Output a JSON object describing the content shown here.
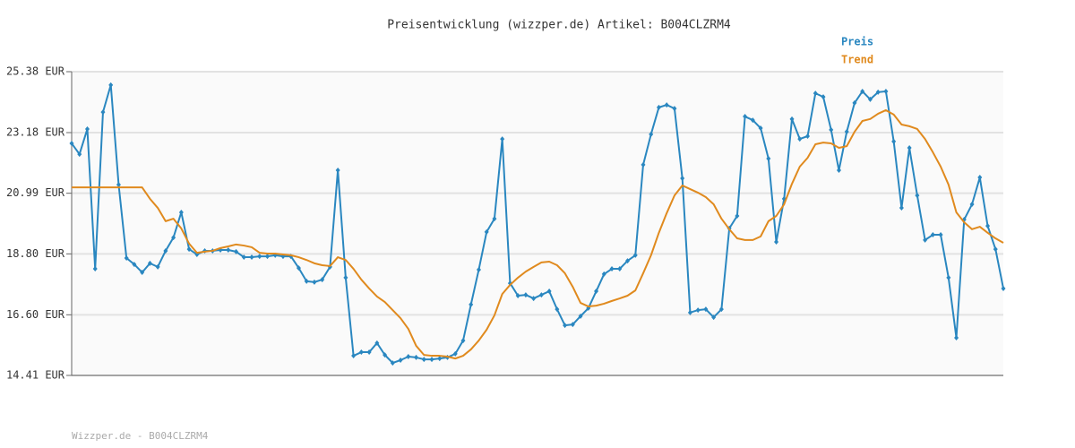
{
  "chart_data": {
    "type": "line",
    "title": "Preisentwicklung (wizzper.de) Artikel: B004CLZRM4",
    "source": "Wizzper.de - B004CLZRM4",
    "ylim": [
      14.41,
      25.38
    ],
    "yticks": [
      {
        "value": 14.41,
        "label": "14.41 EUR"
      },
      {
        "value": 16.6,
        "label": "16.60 EUR"
      },
      {
        "value": 18.8,
        "label": "18.80 EUR"
      },
      {
        "value": 20.99,
        "label": "20.99 EUR"
      },
      {
        "value": 23.18,
        "label": "23.18 EUR"
      },
      {
        "value": 25.38,
        "label": "25.38 EUR"
      }
    ],
    "grid": true,
    "legend": "top-right",
    "series": [
      {
        "name": "Preis",
        "color": "#2a87c0",
        "markers": true,
        "values": [
          22.79,
          22.4,
          23.31,
          18.26,
          23.92,
          24.9,
          21.3,
          18.65,
          18.42,
          18.13,
          18.46,
          18.33,
          18.91,
          19.39,
          20.3,
          18.97,
          18.78,
          18.91,
          18.91,
          18.94,
          18.94,
          18.88,
          18.68,
          18.68,
          18.71,
          18.71,
          18.75,
          18.71,
          18.71,
          18.29,
          17.81,
          17.78,
          17.87,
          18.33,
          21.82,
          17.94,
          15.12,
          15.25,
          15.25,
          15.58,
          15.15,
          14.86,
          14.96,
          15.09,
          15.06,
          14.99,
          14.99,
          15.02,
          15.06,
          15.19,
          15.67,
          16.97,
          18.23,
          19.59,
          20.07,
          22.95,
          17.74,
          17.29,
          17.32,
          17.19,
          17.32,
          17.45,
          16.8,
          16.22,
          16.25,
          16.55,
          16.84,
          17.45,
          18.07,
          18.26,
          18.26,
          18.55,
          18.75,
          22.02,
          23.12,
          24.09,
          24.18,
          24.05,
          21.53,
          16.68,
          16.77,
          16.8,
          16.51,
          16.8,
          19.72,
          20.17,
          23.76,
          23.63,
          23.34,
          22.24,
          19.23,
          20.79,
          23.67,
          22.95,
          23.05,
          24.6,
          24.47,
          23.28,
          21.82,
          23.21,
          24.25,
          24.67,
          24.38,
          24.64,
          24.67,
          22.86,
          20.46,
          22.63,
          20.91,
          19.3,
          19.49,
          19.49,
          17.94,
          15.77,
          20.04,
          20.59,
          21.56,
          19.81,
          18.97,
          17.55
        ]
      },
      {
        "name": "Trend",
        "color": "#e08a1e",
        "markers": false,
        "values": [
          21.2,
          21.2,
          21.2,
          21.2,
          21.2,
          21.2,
          21.2,
          21.2,
          21.2,
          21.2,
          20.79,
          20.46,
          19.98,
          20.07,
          19.72,
          19.17,
          18.84,
          18.88,
          18.91,
          19.01,
          19.07,
          19.14,
          19.1,
          19.04,
          18.84,
          18.81,
          18.81,
          18.78,
          18.75,
          18.68,
          18.58,
          18.46,
          18.39,
          18.36,
          18.68,
          18.58,
          18.26,
          17.87,
          17.55,
          17.26,
          17.06,
          16.77,
          16.48,
          16.09,
          15.48,
          15.15,
          15.12,
          15.12,
          15.09,
          15.02,
          15.12,
          15.35,
          15.67,
          16.06,
          16.58,
          17.35,
          17.68,
          17.94,
          18.16,
          18.33,
          18.49,
          18.52,
          18.39,
          18.1,
          17.61,
          17.03,
          16.9,
          16.93,
          17.0,
          17.1,
          17.19,
          17.29,
          17.48,
          18.1,
          18.75,
          19.56,
          20.27,
          20.91,
          21.27,
          21.14,
          21.01,
          20.85,
          20.59,
          20.07,
          19.69,
          19.36,
          19.3,
          19.3,
          19.43,
          19.98,
          20.17,
          20.59,
          21.33,
          21.95,
          22.27,
          22.76,
          22.82,
          22.79,
          22.63,
          22.69,
          23.21,
          23.6,
          23.67,
          23.86,
          23.99,
          23.83,
          23.47,
          23.41,
          23.31,
          22.95,
          22.47,
          21.95,
          21.3,
          20.3,
          19.94,
          19.69,
          19.78,
          19.56,
          19.36,
          19.2
        ]
      }
    ]
  }
}
